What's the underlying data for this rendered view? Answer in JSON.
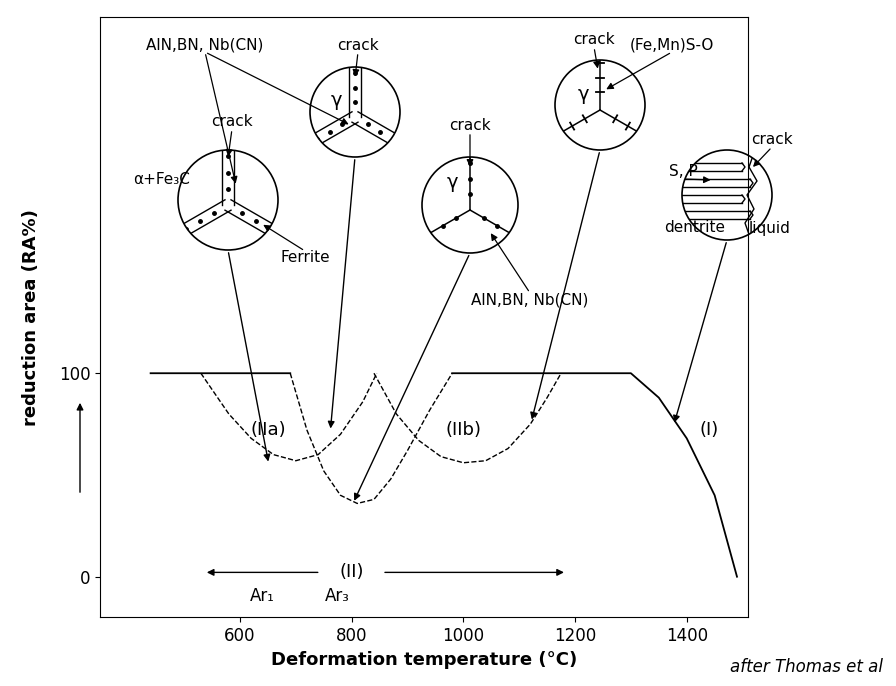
{
  "chart_data": {
    "type": "line",
    "x_label": "Deformation temperature (°C)",
    "y_label": "reduction area (RA%)",
    "source": "after Thomas et al",
    "xlim": [
      350,
      1510
    ],
    "ylim": [
      -20,
      275
    ],
    "xticks": [
      600,
      800,
      1000,
      1200,
      1400
    ],
    "yticks": [
      0,
      100
    ],
    "series": [
      {
        "name": "(I)",
        "color": "#000000",
        "line_style": "solid",
        "x": [
          440,
          690,
          800,
          980,
          1300,
          1350,
          1400,
          1450,
          1490
        ],
        "values": [
          100,
          100,
          null,
          100,
          100,
          88,
          68,
          40,
          0
        ]
      },
      {
        "name": "(IIa)",
        "color": "#000000",
        "line_style": "dashed",
        "x": [
          530,
          580,
          620,
          660,
          700,
          740,
          780,
          820,
          845
        ],
        "values": [
          100,
          80,
          68,
          60,
          57,
          60,
          70,
          86,
          100
        ]
      },
      {
        "name": "(II)",
        "color": "#000000",
        "line_style": "dashed",
        "x": [
          690,
          720,
          750,
          780,
          810,
          840,
          870,
          900,
          940,
          980
        ],
        "values": [
          100,
          72,
          52,
          40,
          36,
          38,
          48,
          62,
          82,
          100
        ]
      },
      {
        "name": "(IIb)",
        "color": "#000000",
        "line_style": "dashed",
        "x": [
          840,
          880,
          920,
          960,
          1000,
          1040,
          1080,
          1120,
          1150,
          1175
        ],
        "values": [
          100,
          80,
          67,
          59,
          56,
          57,
          63,
          75,
          88,
          100
        ]
      }
    ],
    "annotations": {
      "temperatures": [
        "Ar₁",
        "Ar₃"
      ],
      "insets": [
        {
          "labels": [
            "crack",
            "α+Fe₃C",
            "AlN,BN, Nb(CN)",
            "Ferrite"
          ]
        },
        {
          "labels": [
            "crack",
            "γ"
          ]
        },
        {
          "labels": [
            "crack",
            "γ",
            "AlN,BN, Nb(CN)"
          ]
        },
        {
          "labels": [
            "crack",
            "γ",
            "(Fe,Mn)S-O"
          ]
        },
        {
          "labels": [
            "crack",
            "S, P",
            "dentrite",
            "liquid"
          ]
        }
      ]
    }
  }
}
